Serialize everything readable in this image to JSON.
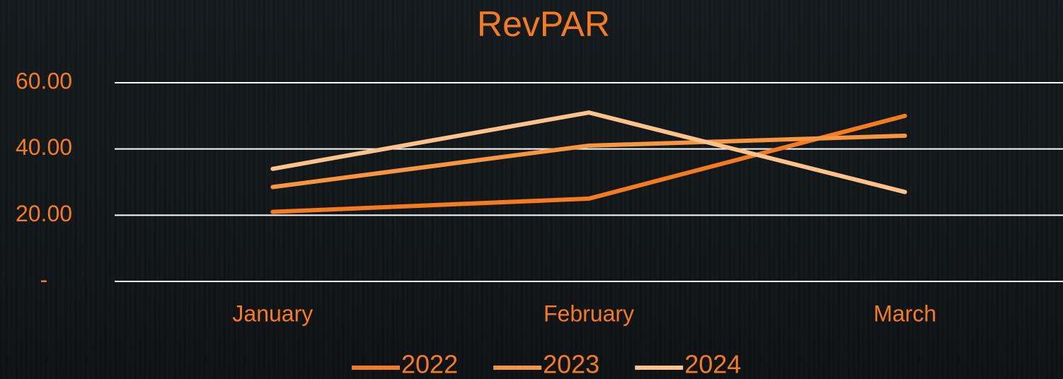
{
  "chart_data": {
    "type": "line",
    "title": "RevPAR",
    "categories": [
      "January",
      "February",
      "March"
    ],
    "series": [
      {
        "name": "2022",
        "color": "#f47b20",
        "values": [
          21,
          25,
          50
        ]
      },
      {
        "name": "2023",
        "color": "#f7963f",
        "values": [
          28.5,
          41,
          44
        ]
      },
      {
        "name": "2024",
        "color": "#fbc28c",
        "values": [
          34,
          51,
          27
        ]
      }
    ],
    "ylim": [
      0,
      60
    ],
    "yticks": [
      {
        "value": 0,
        "label": "-"
      },
      {
        "value": 20,
        "label": "20.00"
      },
      {
        "value": 40,
        "label": "40.00"
      },
      {
        "value": 60,
        "label": "60.00"
      }
    ],
    "grid": true
  }
}
